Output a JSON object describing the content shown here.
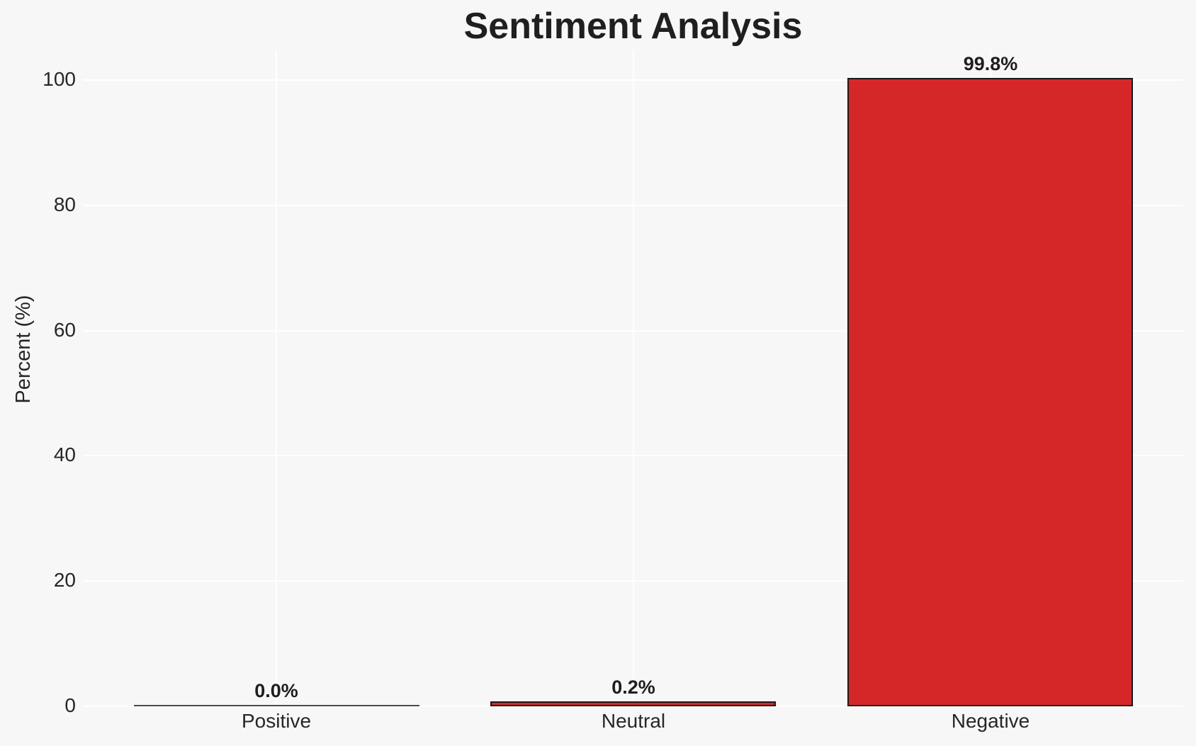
{
  "title": "Sentiment Analysis",
  "y_axis_label": "Percent (%)",
  "chart_data": {
    "type": "bar",
    "title": "Sentiment Analysis",
    "xlabel": "",
    "ylabel": "Percent (%)",
    "categories": [
      "Positive",
      "Neutral",
      "Negative"
    ],
    "values": [
      0.0,
      0.2,
      99.8
    ],
    "value_labels": [
      "0.0%",
      "0.2%",
      "99.8%"
    ],
    "yticks": [
      0,
      20,
      40,
      60,
      80,
      100
    ],
    "ylim": [
      0,
      105
    ],
    "grid": true,
    "legend": false,
    "colors": {
      "bar_fill": "#d62728",
      "bar_edge": "#1a1a1a",
      "flat_bar_line": "#4a4a4a",
      "background": "#f7f7f7",
      "gridline": "#ffffff",
      "text": "#262626"
    }
  }
}
